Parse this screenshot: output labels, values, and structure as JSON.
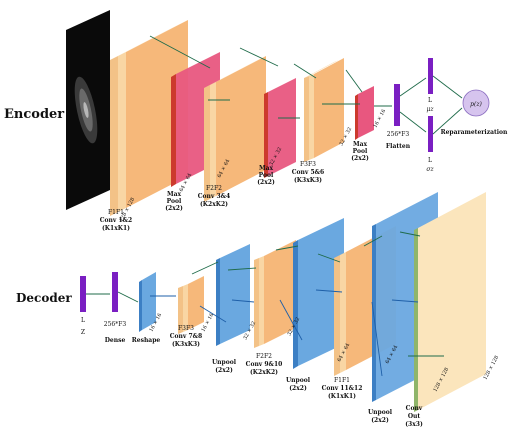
{
  "sections": {
    "encoder": "Encoder",
    "decoder": "Decoder"
  },
  "encoder": {
    "f1": {
      "top": "F1F1",
      "line1": "Conv 1&2",
      "line2": "(K1xK1)"
    },
    "mp1": {
      "line1": "Max",
      "line2": "Pool",
      "line3": "(2x2)"
    },
    "f2": {
      "top": "F2F2",
      "line1": "Conv 3&4",
      "line2": "(K2xK2)"
    },
    "mp2": {
      "line1": "Max",
      "line2": "Pool",
      "line3": "(2x2)"
    },
    "f3": {
      "top": "F3F3",
      "line1": "Conv 5&6",
      "line2": "(K3xK3)"
    },
    "mp3": {
      "line1": "Max",
      "line2": "Pool",
      "line3": "(2x2)"
    },
    "flatten": "Flatten",
    "flatten_dim": "256*F3",
    "mu": {
      "l": "L",
      "sym": "μz"
    },
    "sigma": {
      "l": "L",
      "sym": "σz"
    },
    "pz": "p(z)",
    "reparam": "Reparameterization",
    "dims": {
      "d128": "128 × 128",
      "d64a": "64 × 64",
      "d64b": "64 × 64",
      "d32a": "32 × 32",
      "d32b": "32 × 32",
      "d16": "16 × 16"
    }
  },
  "decoder": {
    "z": {
      "l": "L",
      "name": "Z"
    },
    "dense": {
      "dim": "256*F3",
      "name": "Dense"
    },
    "reshape": "Reshape",
    "f3": {
      "top": "F3F3",
      "line1": "Conv 7&8",
      "line2": "(K3xK3)"
    },
    "up1": {
      "line1": "Unpool",
      "line2": "(2x2)"
    },
    "f2": {
      "top": "F2F2",
      "line1": "Conv 9&10",
      "line2": "(K2xK2)"
    },
    "up2": {
      "line1": "Unpool",
      "line2": "(2x2)"
    },
    "f1": {
      "top": "F1F1",
      "line1": "Conv 11&12",
      "line2": "(K1xK1)"
    },
    "up3": {
      "line1": "Unpool",
      "line2": "(2x2)"
    },
    "out": {
      "line1": "Conv",
      "line2": "Out",
      "line3": "(3x3)"
    },
    "dims": {
      "d16": "16 × 16",
      "d16b": "16 × 16",
      "d32a": "32 × 32",
      "d32b": "32 × 32",
      "d64a": "64 × 64",
      "d64b": "64 × 64",
      "d128a": "128 × 128",
      "d128b": "128 × 128"
    }
  }
}
